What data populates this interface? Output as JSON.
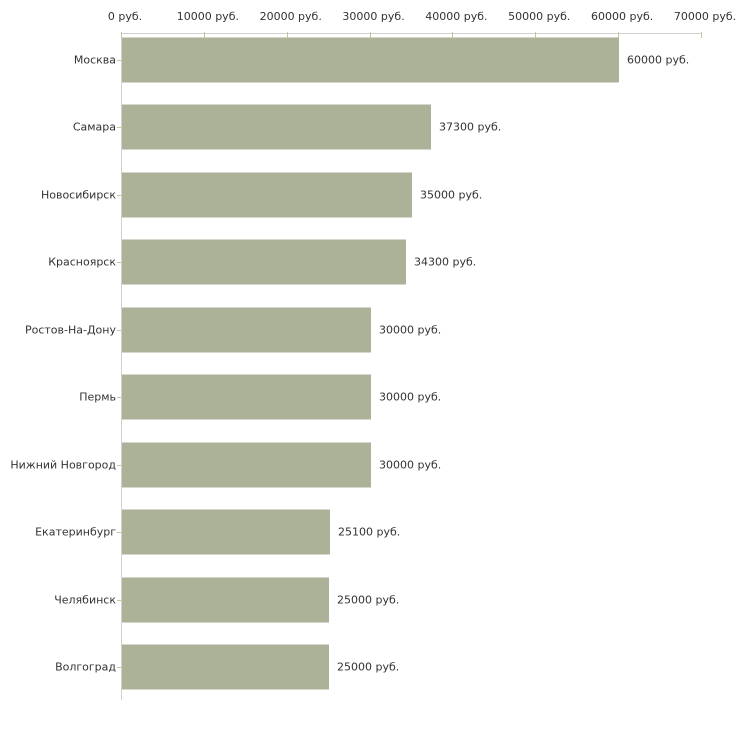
{
  "chart_data": {
    "type": "bar",
    "orientation": "horizontal",
    "title": "",
    "xlabel": "",
    "ylabel": "",
    "categories": [
      "Москва",
      "Самара",
      "Новосибирск",
      "Красноярск",
      "Ростов-На-Дону",
      "Пермь",
      "Нижний Новгород",
      "Екатеринбург",
      "Челябинск",
      "Волгоград"
    ],
    "values": [
      60000,
      37300,
      35000,
      34300,
      30000,
      30000,
      30000,
      25100,
      25000,
      25000
    ],
    "value_labels": [
      "60000 руб.",
      "37300 руб.",
      "35000 руб.",
      "34300 руб.",
      "30000 руб.",
      "30000 руб.",
      "30000 руб.",
      "25100 руб.",
      "25000 руб.",
      "25000 руб."
    ],
    "x_ticks": [
      0,
      10000,
      20000,
      30000,
      40000,
      50000,
      60000,
      70000
    ],
    "x_tick_labels": [
      "0 руб.",
      "10000 руб.",
      "20000 руб.",
      "30000 руб.",
      "40000 руб.",
      "50000 руб.",
      "60000 руб.",
      "70000 руб."
    ],
    "xlim": [
      0,
      70000
    ],
    "grid": false,
    "legend": "none",
    "unit": "руб."
  },
  "colors": {
    "bar": "#abb298",
    "axis_line": "#d0d0d0",
    "tick_mark": "#c6c69a",
    "text": "#333333",
    "background": "#ffffff"
  }
}
